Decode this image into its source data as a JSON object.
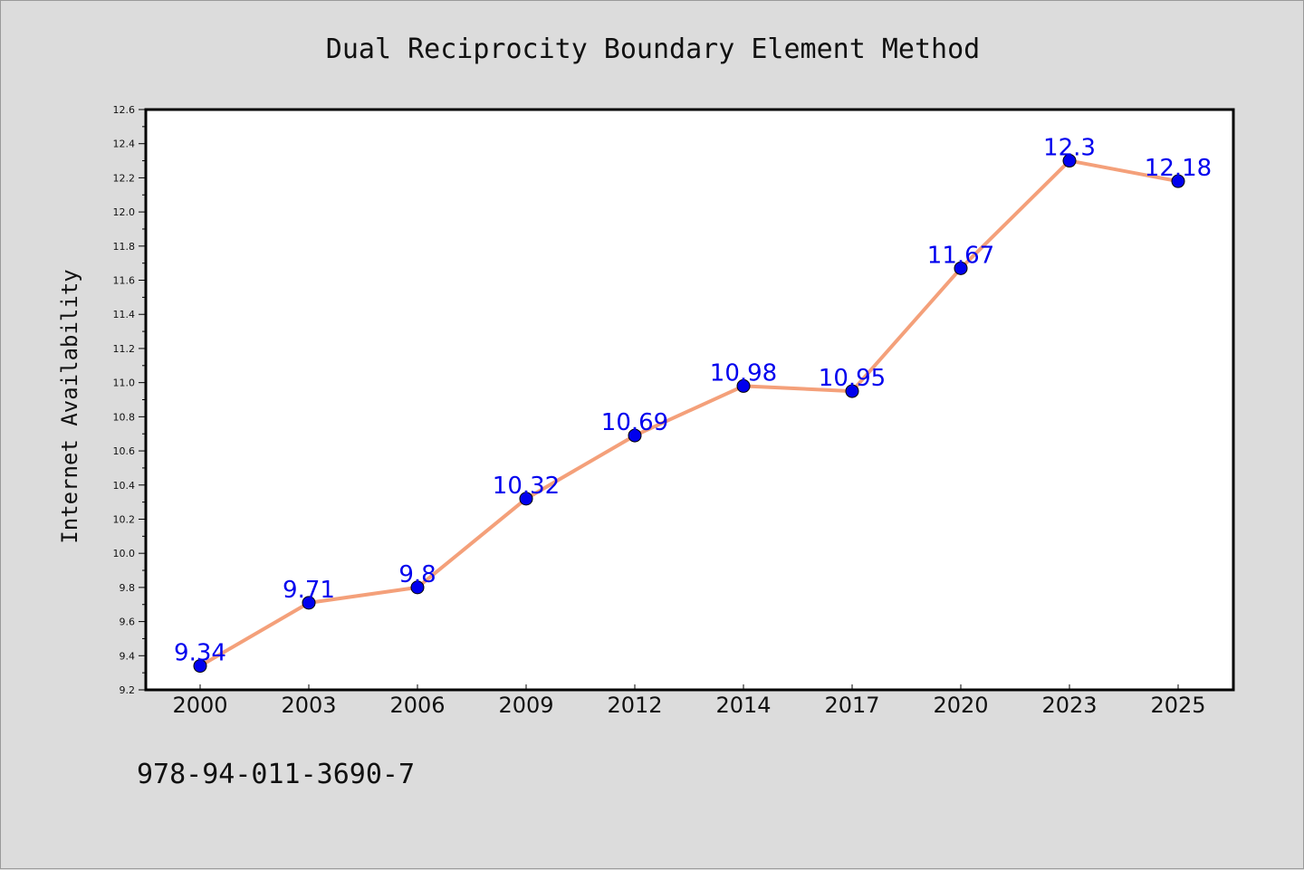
{
  "chart_data": {
    "type": "line",
    "title": "Dual Reciprocity Boundary Element Method",
    "xlabel": "",
    "ylabel": "Internet Availability",
    "categories": [
      "2000",
      "2003",
      "2006",
      "2009",
      "2012",
      "2014",
      "2017",
      "2020",
      "2023",
      "2025"
    ],
    "series": [
      {
        "values": [
          9.34,
          9.71,
          9.8,
          10.32,
          10.69,
          10.98,
          10.95,
          11.67,
          12.3,
          12.18
        ]
      }
    ],
    "data_labels": [
      "9.34",
      "9.71",
      "9.8",
      "10.32",
      "10.69",
      "10.98",
      "10.95",
      "11.67",
      "12.3",
      "12.18"
    ],
    "ylim": [
      9.2,
      12.6
    ],
    "yticks": [
      "9.2",
      "9.4",
      "9.6",
      "9.8",
      "10.0",
      "10.2",
      "10.4",
      "10.6",
      "10.8",
      "11.0",
      "11.2",
      "11.4",
      "11.6",
      "11.8",
      "12.0",
      "12.2",
      "12.4",
      "12.6"
    ],
    "grid": false,
    "line_color": "#f4a07a",
    "marker_color": "#0000ee",
    "label_color": "#0000ee"
  },
  "footer": {
    "isbn": "978-94-011-3690-7"
  }
}
